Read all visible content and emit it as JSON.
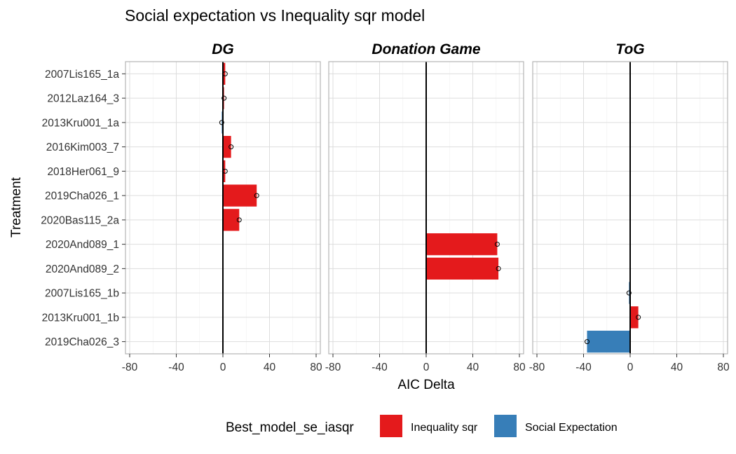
{
  "chart_data": {
    "type": "bar",
    "title": "Social expectation vs Inequality sqr model",
    "xlabel": "AIC Delta",
    "ylabel": "Treatment",
    "xlim": [
      -80,
      80
    ],
    "xticks": [
      -80,
      -40,
      0,
      40,
      80
    ],
    "grid": true,
    "categories": [
      "2007Lis165_1a",
      "2012Laz164_3",
      "2013Kru001_1a",
      "2016Kim003_7",
      "2018Her061_9",
      "2019Cha026_1",
      "2020Bas115_2a",
      "2020And089_1",
      "2020And089_2",
      "2007Lis165_1b",
      "2013Kru001_1b",
      "2019Cha026_3"
    ],
    "panels": [
      {
        "label": "DG",
        "bars": [
          {
            "treatment": "2007Lis165_1a",
            "value": 2,
            "best_model": "Inequality sqr"
          },
          {
            "treatment": "2012Laz164_3",
            "value": 1,
            "best_model": "Inequality sqr"
          },
          {
            "treatment": "2013Kru001_1a",
            "value": -1,
            "best_model": "Social Expectation"
          },
          {
            "treatment": "2016Kim003_7",
            "value": 7,
            "best_model": "Inequality sqr"
          },
          {
            "treatment": "2018Her061_9",
            "value": 2,
            "best_model": "Inequality sqr"
          },
          {
            "treatment": "2019Cha026_1",
            "value": 29,
            "best_model": "Inequality sqr"
          },
          {
            "treatment": "2020Bas115_2a",
            "value": 14,
            "best_model": "Inequality sqr"
          }
        ]
      },
      {
        "label": "Donation Game",
        "bars": [
          {
            "treatment": "2020And089_1",
            "value": 61,
            "best_model": "Inequality sqr"
          },
          {
            "treatment": "2020And089_2",
            "value": 62,
            "best_model": "Inequality sqr"
          }
        ]
      },
      {
        "label": "ToG",
        "bars": [
          {
            "treatment": "2007Lis165_1b",
            "value": -1,
            "best_model": "Social Expectation"
          },
          {
            "treatment": "2013Kru001_1b",
            "value": 7,
            "best_model": "Inequality sqr"
          },
          {
            "treatment": "2019Cha026_3",
            "value": -37,
            "best_model": "Social Expectation"
          }
        ]
      }
    ],
    "legend": {
      "title": "Best_model_se_iasqr",
      "position": "bottom",
      "items": [
        {
          "label": "Inequality sqr",
          "color": "#e41a1c"
        },
        {
          "label": "Social Expectation",
          "color": "#377eb8"
        }
      ]
    }
  }
}
